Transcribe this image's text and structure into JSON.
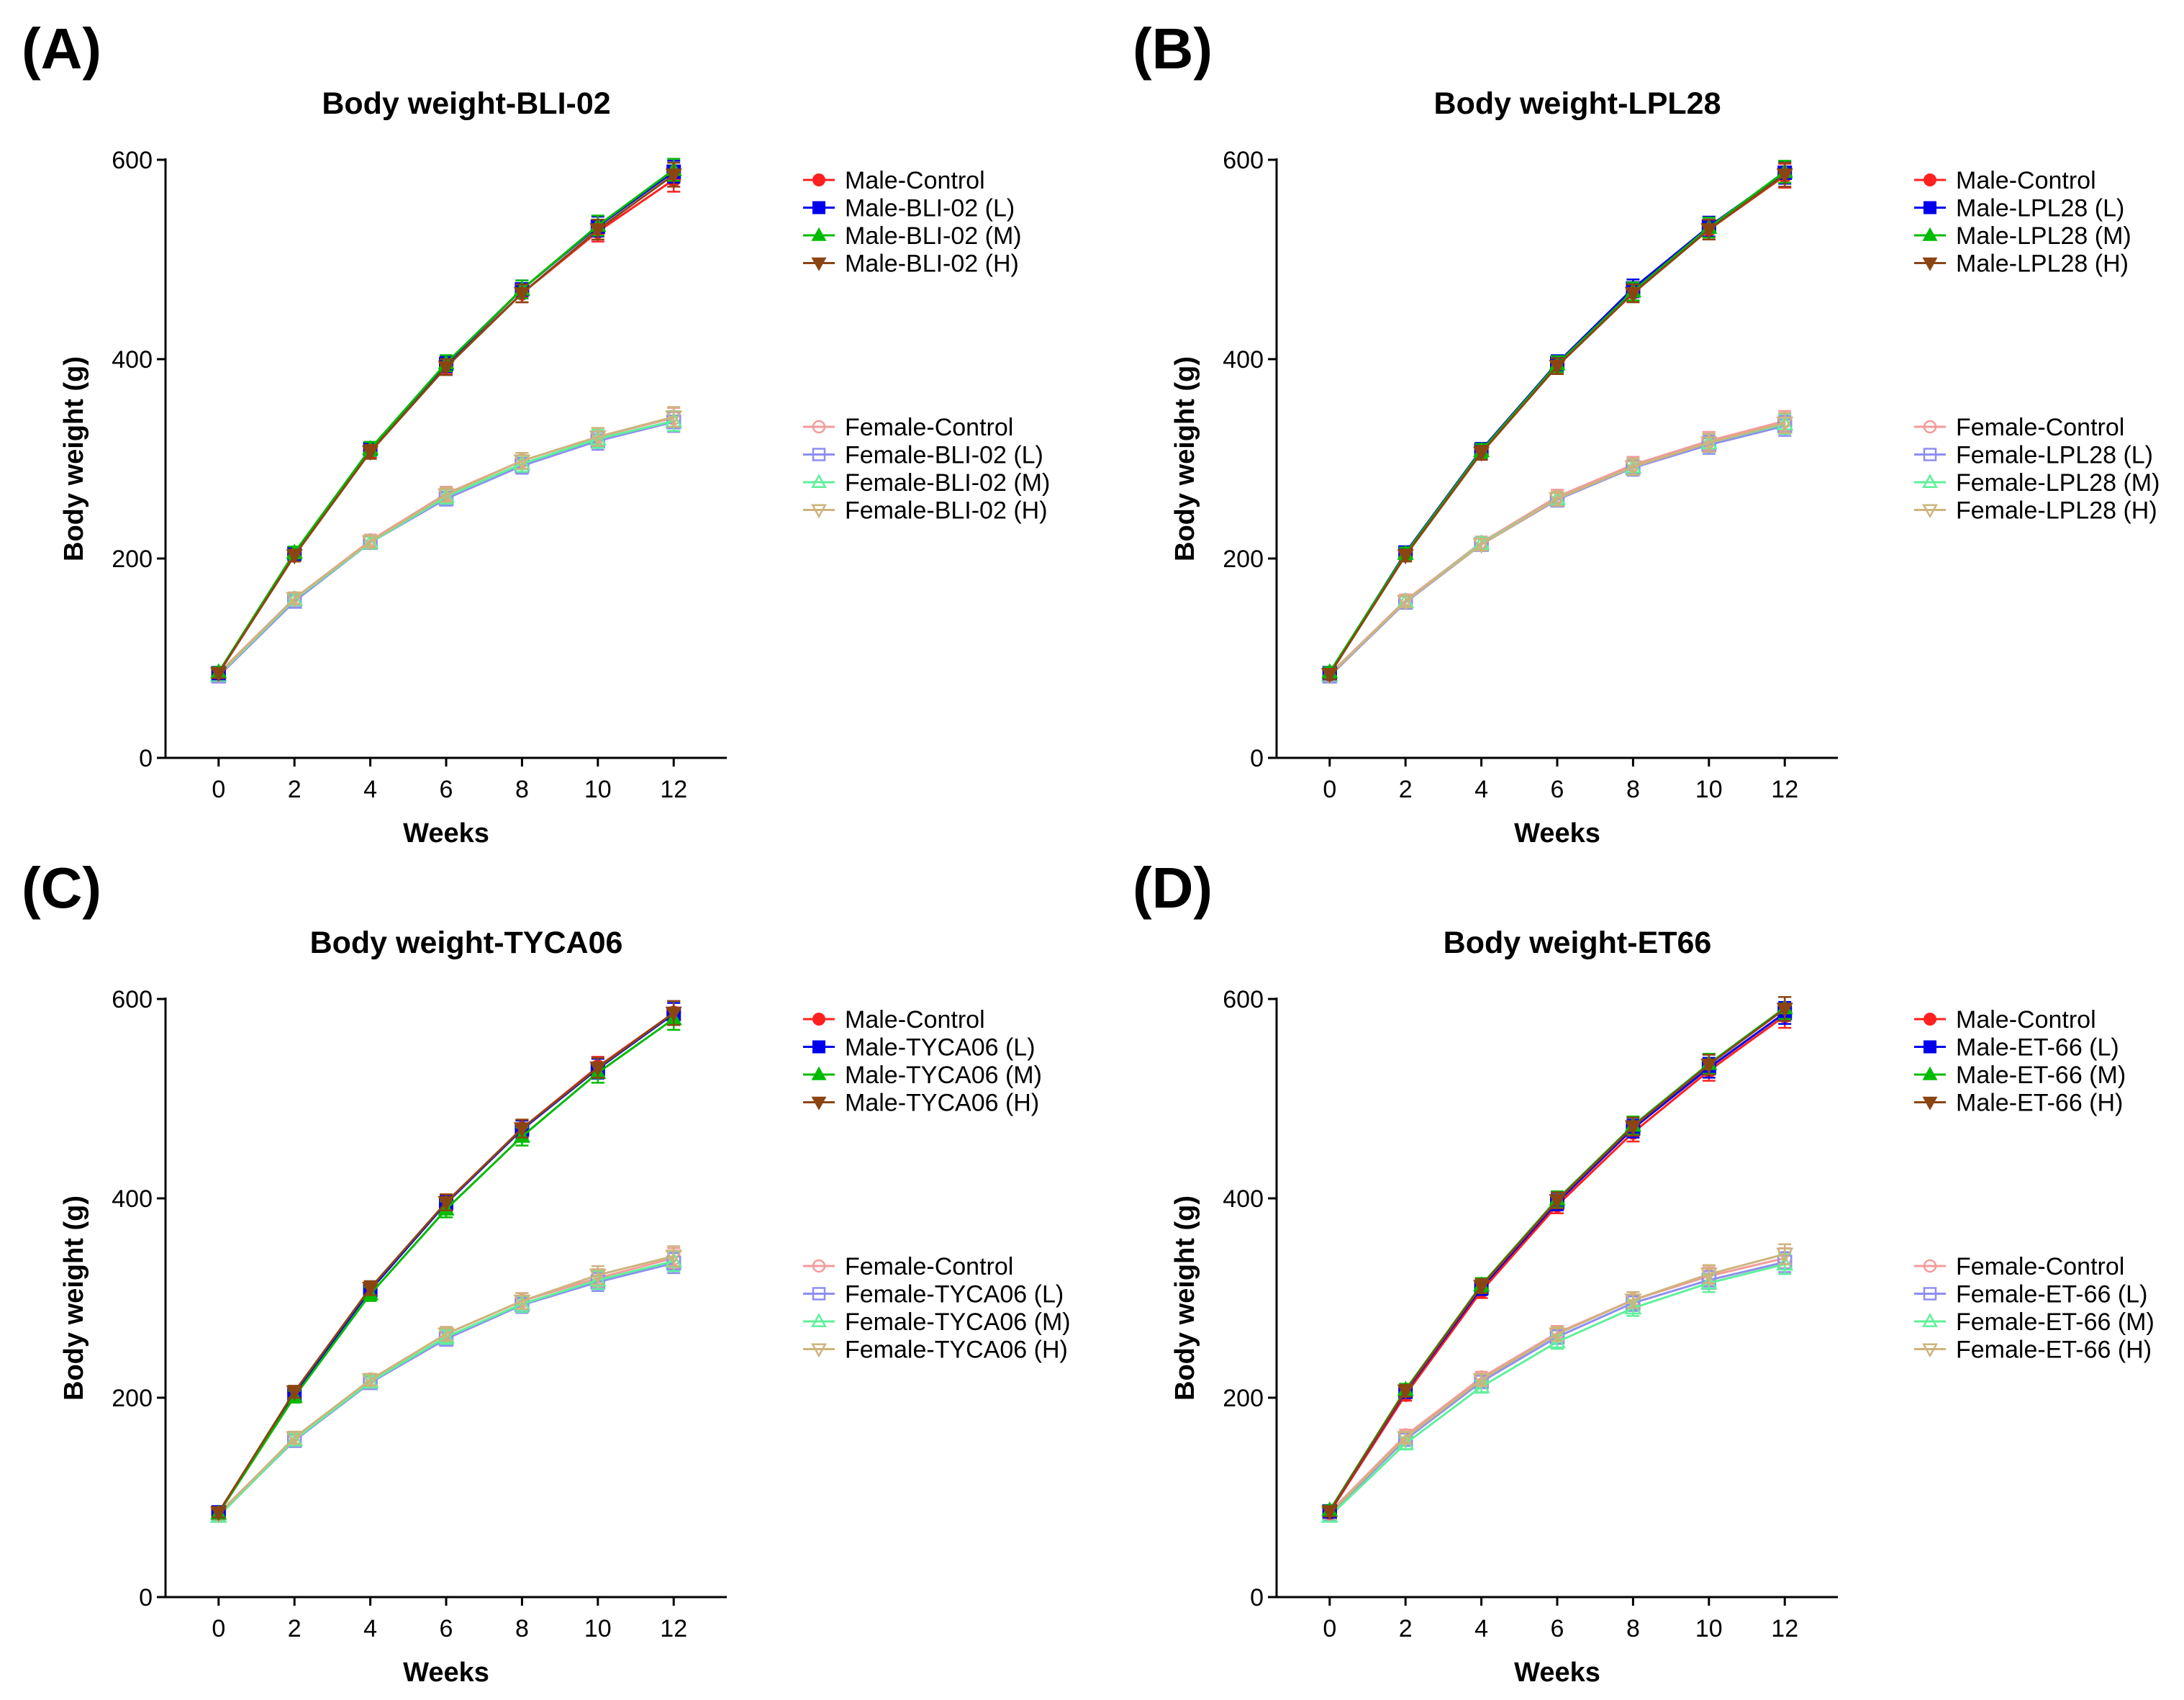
{
  "figure": {
    "panel_labels": [
      "(A)",
      "(B)",
      "(C)",
      "(D)"
    ]
  },
  "chart_data": [
    {
      "panel": "(A)",
      "type": "line",
      "title": "Body weight-BLI-02",
      "xlabel": "Weeks",
      "ylabel": "Body weight (g)",
      "x": [
        0,
        2,
        4,
        6,
        8,
        10,
        12
      ],
      "xticks": [
        "0",
        "2",
        "4",
        "6",
        "8",
        "10",
        "12"
      ],
      "yticks": [
        "0",
        "200",
        "400",
        "600"
      ],
      "xlim": [
        -1.4,
        13.4
      ],
      "ylim": [
        0,
        600
      ],
      "grid": false,
      "legend": "right",
      "series": [
        {
          "name": "Male-Control",
          "color": "#ff2020",
          "marker": "circle",
          "filled": true,
          "values": [
            85,
            203,
            308,
            393,
            466,
            528,
            580
          ],
          "err": [
            6,
            6,
            7,
            8,
            9,
            10,
            12
          ]
        },
        {
          "name": "Male-BLI-02 (L)",
          "color": "#0000ee",
          "marker": "square",
          "filled": true,
          "values": [
            85,
            205,
            310,
            395,
            470,
            533,
            588
          ],
          "err": [
            5,
            6,
            7,
            8,
            9,
            10,
            11
          ]
        },
        {
          "name": "Male-BLI-02 (M)",
          "color": "#00bb00",
          "marker": "triangle-up",
          "filled": true,
          "values": [
            86,
            206,
            310,
            396,
            470,
            534,
            590
          ],
          "err": [
            5,
            6,
            7,
            8,
            9,
            10,
            11
          ]
        },
        {
          "name": "Male-BLI-02 (H)",
          "color": "#8b4513",
          "marker": "triangle-down",
          "filled": true,
          "values": [
            85,
            203,
            307,
            392,
            466,
            530,
            585
          ],
          "err": [
            5,
            6,
            7,
            8,
            9,
            10,
            12
          ]
        },
        {
          "name": "Female-Control",
          "color": "#f49a9a",
          "marker": "circle",
          "filled": false,
          "values": [
            85,
            160,
            218,
            265,
            298,
            322,
            341
          ],
          "err": [
            5,
            6,
            6,
            7,
            8,
            9,
            10
          ]
        },
        {
          "name": "Female-BLI-02 (L)",
          "color": "#8e8ef2",
          "marker": "square",
          "filled": false,
          "values": [
            82,
            157,
            216,
            260,
            293,
            318,
            337
          ],
          "err": [
            5,
            6,
            6,
            7,
            8,
            9,
            10
          ]
        },
        {
          "name": "Female-BLI-02 (M)",
          "color": "#5ff09a",
          "marker": "triangle-up",
          "filled": false,
          "values": [
            83,
            159,
            216,
            262,
            295,
            320,
            338
          ],
          "err": [
            5,
            6,
            6,
            7,
            8,
            9,
            10
          ]
        },
        {
          "name": "Female-BLI-02 (H)",
          "color": "#cdb47d",
          "marker": "triangle-down",
          "filled": false,
          "values": [
            84,
            160,
            217,
            264,
            298,
            322,
            342
          ],
          "err": [
            5,
            6,
            6,
            7,
            8,
            9,
            10
          ]
        }
      ]
    },
    {
      "panel": "(B)",
      "type": "line",
      "title": "Body weight-LPL28",
      "xlabel": "Weeks",
      "ylabel": "Body weight (g)",
      "x": [
        0,
        2,
        4,
        6,
        8,
        10,
        12
      ],
      "xticks": [
        "0",
        "2",
        "4",
        "6",
        "8",
        "10",
        "12"
      ],
      "yticks": [
        "0",
        "200",
        "400",
        "600"
      ],
      "xlim": [
        -1.4,
        13.4
      ],
      "ylim": [
        0,
        600
      ],
      "grid": false,
      "legend": "right",
      "series": [
        {
          "name": "Male-Control",
          "color": "#ff2020",
          "marker": "circle",
          "filled": true,
          "values": [
            84,
            204,
            307,
            394,
            467,
            530,
            584
          ],
          "err": [
            5,
            6,
            7,
            8,
            9,
            10,
            12
          ]
        },
        {
          "name": "Male-LPL28 (L)",
          "color": "#0000ee",
          "marker": "square",
          "filled": true,
          "values": [
            85,
            206,
            309,
            396,
            471,
            533,
            587
          ],
          "err": [
            5,
            6,
            7,
            8,
            9,
            10,
            11
          ]
        },
        {
          "name": "Male-LPL28 (M)",
          "color": "#00bb00",
          "marker": "triangle-up",
          "filled": true,
          "values": [
            86,
            205,
            308,
            395,
            468,
            532,
            588
          ],
          "err": [
            5,
            6,
            7,
            8,
            9,
            10,
            11
          ]
        },
        {
          "name": "Male-LPL28 (H)",
          "color": "#8b4513",
          "marker": "triangle-down",
          "filled": true,
          "values": [
            84,
            203,
            306,
            393,
            466,
            530,
            585
          ],
          "err": [
            5,
            6,
            7,
            8,
            9,
            10,
            12
          ]
        },
        {
          "name": "Female-Control",
          "color": "#f49a9a",
          "marker": "circle",
          "filled": false,
          "values": [
            84,
            158,
            216,
            262,
            294,
            318,
            338
          ],
          "err": [
            5,
            6,
            6,
            7,
            8,
            9,
            10
          ]
        },
        {
          "name": "Female-LPL28 (L)",
          "color": "#8e8ef2",
          "marker": "square",
          "filled": false,
          "values": [
            82,
            156,
            214,
            259,
            291,
            314,
            333
          ],
          "err": [
            5,
            6,
            6,
            7,
            8,
            9,
            10
          ]
        },
        {
          "name": "Female-LPL28 (M)",
          "color": "#5ff09a",
          "marker": "triangle-up",
          "filled": false,
          "values": [
            83,
            157,
            215,
            260,
            292,
            316,
            335
          ],
          "err": [
            5,
            6,
            6,
            7,
            8,
            9,
            10
          ]
        },
        {
          "name": "Female-LPL28 (H)",
          "color": "#cdb47d",
          "marker": "triangle-down",
          "filled": false,
          "values": [
            83,
            157,
            214,
            260,
            292,
            316,
            336
          ],
          "err": [
            5,
            6,
            6,
            7,
            8,
            9,
            10
          ]
        }
      ]
    },
    {
      "panel": "(C)",
      "type": "line",
      "title": "Body weight-TYCA06",
      "xlabel": "Weeks",
      "ylabel": "Body weight (g)",
      "x": [
        0,
        2,
        4,
        6,
        8,
        10,
        12
      ],
      "xticks": [
        "0",
        "2",
        "4",
        "6",
        "8",
        "10",
        "12"
      ],
      "yticks": [
        "0",
        "200",
        "400",
        "600"
      ],
      "xlim": [
        -1.4,
        13.4
      ],
      "ylim": [
        0,
        600
      ],
      "grid": false,
      "legend": "right",
      "series": [
        {
          "name": "Male-Control",
          "color": "#ff2020",
          "marker": "circle",
          "filled": true,
          "values": [
            85,
            205,
            309,
            396,
            470,
            532,
            586
          ],
          "err": [
            5,
            6,
            7,
            8,
            9,
            10,
            12
          ]
        },
        {
          "name": "Male-TYCA06 (L)",
          "color": "#0000ee",
          "marker": "square",
          "filled": true,
          "values": [
            85,
            204,
            308,
            395,
            469,
            530,
            585
          ],
          "err": [
            5,
            6,
            7,
            8,
            9,
            10,
            11
          ]
        },
        {
          "name": "Male-TYCA06 (M)",
          "color": "#00bb00",
          "marker": "triangle-up",
          "filled": true,
          "values": [
            84,
            201,
            304,
            389,
            462,
            526,
            580
          ],
          "err": [
            5,
            6,
            7,
            8,
            9,
            10,
            11
          ]
        },
        {
          "name": "Male-TYCA06 (H)",
          "color": "#8b4513",
          "marker": "triangle-down",
          "filled": true,
          "values": [
            85,
            206,
            310,
            396,
            470,
            531,
            586
          ],
          "err": [
            5,
            6,
            7,
            8,
            9,
            10,
            12
          ]
        },
        {
          "name": "Female-Control",
          "color": "#f49a9a",
          "marker": "circle",
          "filled": false,
          "values": [
            84,
            159,
            218,
            264,
            297,
            320,
            340
          ],
          "err": [
            5,
            6,
            6,
            7,
            8,
            9,
            10
          ]
        },
        {
          "name": "Female-TYCA06 (L)",
          "color": "#8e8ef2",
          "marker": "square",
          "filled": false,
          "values": [
            82,
            157,
            215,
            259,
            293,
            316,
            335
          ],
          "err": [
            5,
            6,
            6,
            7,
            8,
            9,
            10
          ]
        },
        {
          "name": "Female-TYCA06 (M)",
          "color": "#5ff09a",
          "marker": "triangle-up",
          "filled": false,
          "values": [
            81,
            158,
            216,
            261,
            294,
            318,
            337
          ],
          "err": [
            5,
            6,
            6,
            7,
            8,
            9,
            10
          ]
        },
        {
          "name": "Female-TYCA06 (H)",
          "color": "#cdb47d",
          "marker": "triangle-down",
          "filled": false,
          "values": [
            83,
            160,
            218,
            264,
            297,
            323,
            342
          ],
          "err": [
            5,
            6,
            6,
            7,
            8,
            9,
            10
          ]
        }
      ]
    },
    {
      "panel": "(D)",
      "type": "line",
      "title": "Body weight-ET66",
      "xlabel": "Weeks",
      "ylabel": "Body weight (g)",
      "x": [
        0,
        2,
        4,
        6,
        8,
        10,
        12
      ],
      "xticks": [
        "0",
        "2",
        "4",
        "6",
        "8",
        "10",
        "12"
      ],
      "yticks": [
        "0",
        "200",
        "400",
        "600"
      ],
      "xlim": [
        -1.4,
        13.4
      ],
      "ylim": [
        0,
        600
      ],
      "grid": false,
      "legend": "right",
      "series": [
        {
          "name": "Male-Control",
          "color": "#ff2020",
          "marker": "circle",
          "filled": true,
          "values": [
            85,
            203,
            307,
            393,
            466,
            528,
            583
          ],
          "err": [
            5,
            6,
            7,
            8,
            9,
            10,
            12
          ]
        },
        {
          "name": "Male-ET-66 (L)",
          "color": "#0000ee",
          "marker": "square",
          "filled": true,
          "values": [
            86,
            206,
            310,
            396,
            470,
            531,
            586
          ],
          "err": [
            5,
            6,
            7,
            8,
            9,
            10,
            11
          ]
        },
        {
          "name": "Male-ET-66 (M)",
          "color": "#00bb00",
          "marker": "triangle-up",
          "filled": true,
          "values": [
            87,
            208,
            313,
            399,
            473,
            535,
            591
          ],
          "err": [
            5,
            6,
            7,
            8,
            9,
            10,
            11
          ]
        },
        {
          "name": "Male-ET-66 (H)",
          "color": "#8b4513",
          "marker": "triangle-down",
          "filled": true,
          "values": [
            86,
            207,
            312,
            398,
            472,
            534,
            590
          ],
          "err": [
            5,
            6,
            7,
            8,
            9,
            10,
            12
          ]
        },
        {
          "name": "Female-Control",
          "color": "#f49a9a",
          "marker": "circle",
          "filled": false,
          "values": [
            85,
            162,
            220,
            265,
            298,
            322,
            340
          ],
          "err": [
            5,
            6,
            6,
            7,
            8,
            9,
            10
          ]
        },
        {
          "name": "Female-ET-66 (L)",
          "color": "#8e8ef2",
          "marker": "square",
          "filled": false,
          "values": [
            83,
            158,
            216,
            261,
            295,
            318,
            336
          ],
          "err": [
            5,
            6,
            6,
            7,
            8,
            9,
            10
          ]
        },
        {
          "name": "Female-ET-66 (M)",
          "color": "#5ff09a",
          "marker": "triangle-up",
          "filled": false,
          "values": [
            81,
            154,
            211,
            256,
            290,
            315,
            334
          ],
          "err": [
            5,
            6,
            6,
            7,
            8,
            9,
            10
          ]
        },
        {
          "name": "Female-ET-66 (H)",
          "color": "#cdb47d",
          "marker": "triangle-down",
          "filled": false,
          "values": [
            84,
            160,
            218,
            264,
            298,
            324,
            344
          ],
          "err": [
            5,
            6,
            6,
            7,
            8,
            9,
            10
          ]
        }
      ]
    }
  ]
}
